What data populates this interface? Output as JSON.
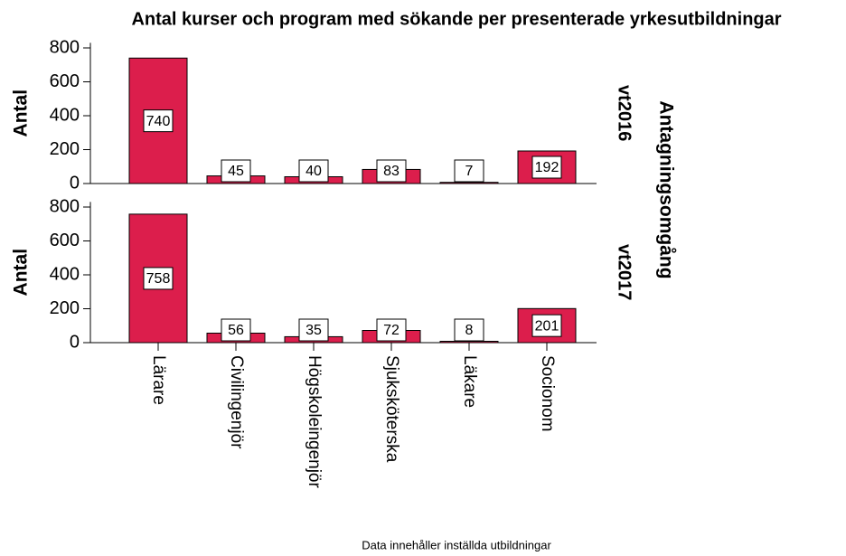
{
  "chart_data": {
    "type": "bar",
    "title": "Antal kurser och program med sökande per presenterade yrkesutbildningar",
    "ylabel": "Antal",
    "panel_label": "Antagningsomgång",
    "footnote": "Data innehåller inställda utbildningar",
    "categories": [
      "Lärare",
      "Civilingenjör",
      "Högskoleingenjör",
      "Sjuksköterska",
      "Läkare",
      "Socionom"
    ],
    "panels": [
      {
        "name": "vt2016",
        "values": [
          740,
          45,
          40,
          83,
          7,
          192
        ]
      },
      {
        "name": "vt2017",
        "values": [
          758,
          56,
          35,
          72,
          8,
          201
        ]
      }
    ],
    "color": "#dc1e4c",
    "ylim": [
      0,
      830
    ],
    "yticks": [
      0,
      200,
      400,
      600,
      800
    ]
  }
}
